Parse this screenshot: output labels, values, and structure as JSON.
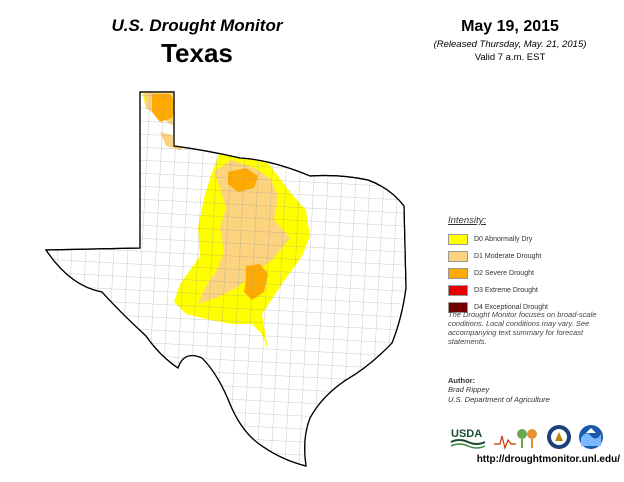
{
  "header": {
    "title": "U.S. Drought Monitor",
    "state": "Texas"
  },
  "date": {
    "main": "May 19, 2015",
    "released": "(Released Thursday, May. 21, 2015)",
    "valid": "Valid 7 a.m. EST"
  },
  "legend": {
    "title": "Intensity:",
    "items": [
      {
        "label": "D0 Abnormally Dry",
        "color": "#ffff00"
      },
      {
        "label": "D1 Moderate Drought",
        "color": "#fcd37f"
      },
      {
        "label": "D2 Severe Drought",
        "color": "#ffaa00"
      },
      {
        "label": "D3 Extreme Drought",
        "color": "#e60000"
      },
      {
        "label": "D4 Exceptional Drought",
        "color": "#730000"
      }
    ]
  },
  "note": "The Drought Monitor focuses on broad-scale conditions. Local conditions may vary. See accompanying text summary for forecast statements.",
  "author": {
    "label": "Author:",
    "name": "Brad Rippey",
    "org": "U.S. Department of Agriculture"
  },
  "logos": [
    {
      "name": "usda-logo",
      "text": "USDA"
    },
    {
      "name": "ndmc-logo",
      "text": ""
    },
    {
      "name": "doc-seal-logo",
      "text": ""
    },
    {
      "name": "noaa-logo",
      "text": ""
    }
  ],
  "url": "http://droughtmonitor.unl.edu/"
}
